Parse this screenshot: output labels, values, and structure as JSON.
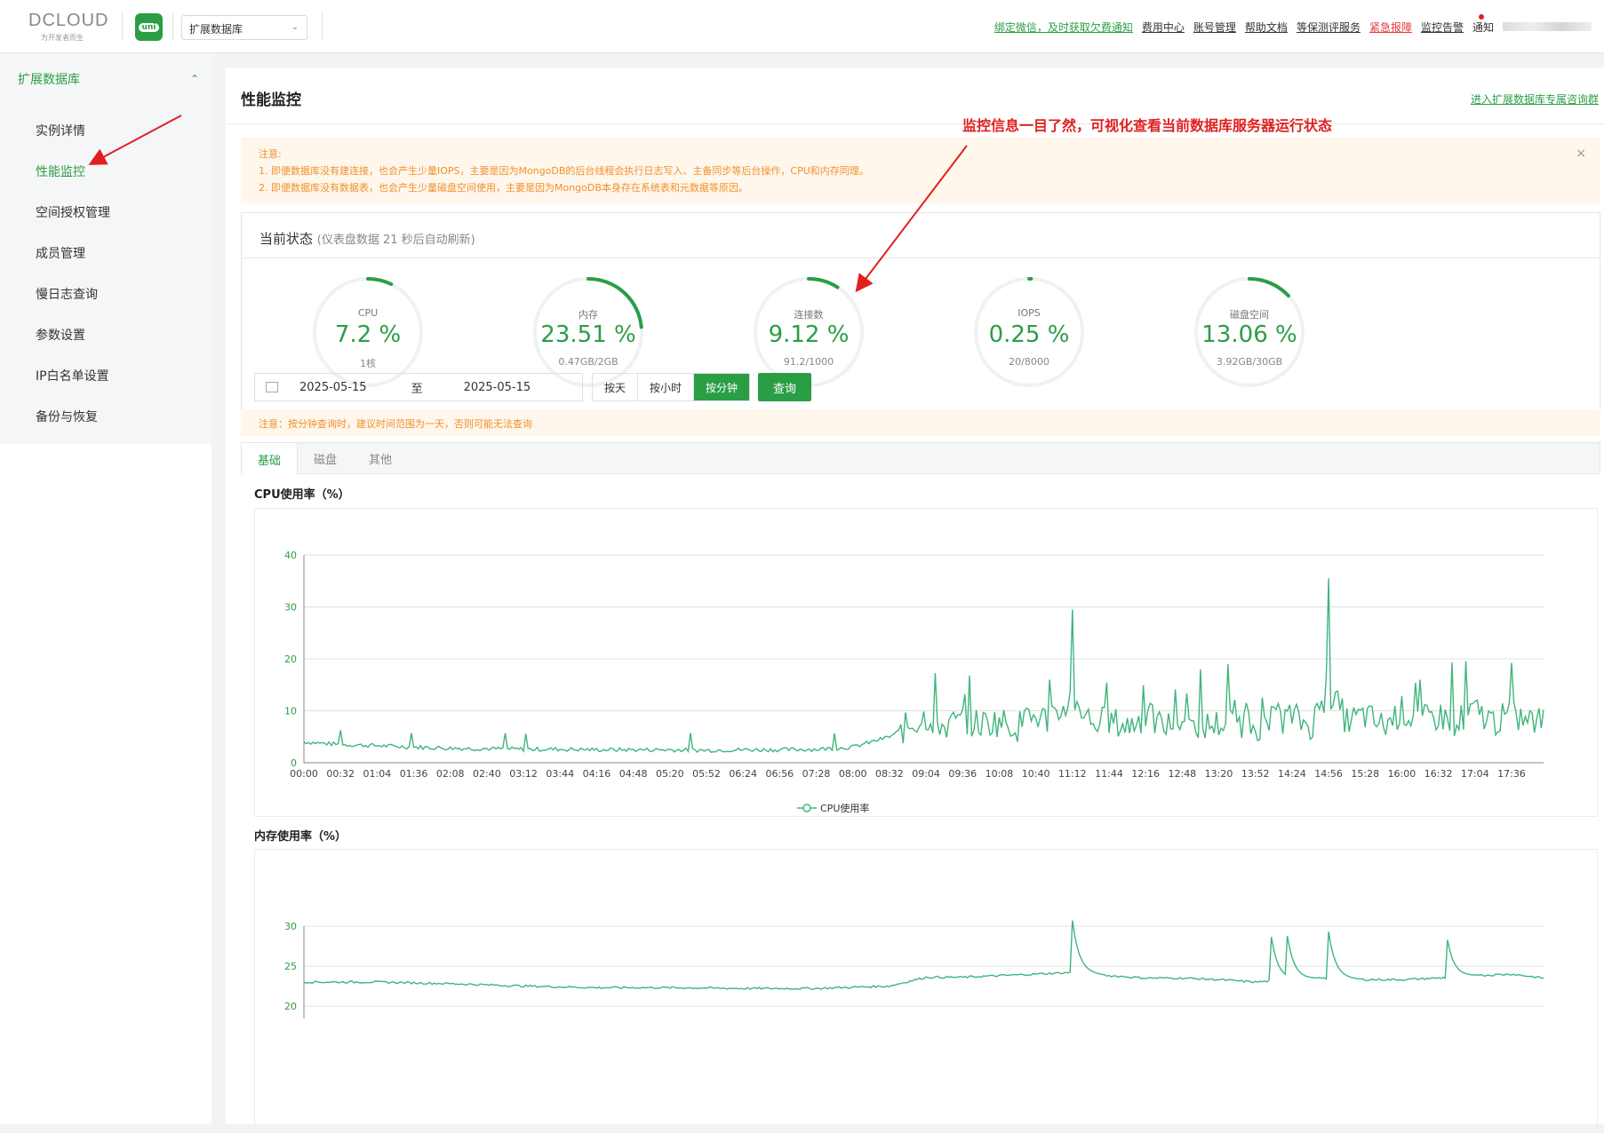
{
  "header": {
    "logo_text": "DCLOUD",
    "logo_tagline": "为开发者而生",
    "uni_badge": "uni",
    "db_select": "扩展数据库",
    "links": [
      {
        "label": "绑定微信，及时获取欠费通知",
        "style": "green"
      },
      {
        "label": "费用中心",
        "style": "normal"
      },
      {
        "label": "账号管理",
        "style": "normal"
      },
      {
        "label": "帮助文档",
        "style": "normal"
      },
      {
        "label": "等保测评服务",
        "style": "normal"
      },
      {
        "label": "紧急报障",
        "style": "red"
      },
      {
        "label": "监控告警",
        "style": "normal"
      },
      {
        "label": "通知",
        "style": "plain"
      }
    ]
  },
  "sidebar": {
    "group": "扩展数据库",
    "items": [
      {
        "label": "实例详情",
        "active": false
      },
      {
        "label": "性能监控",
        "active": true
      },
      {
        "label": "空间授权管理",
        "active": false
      },
      {
        "label": "成员管理",
        "active": false
      },
      {
        "label": "慢日志查询",
        "active": false
      },
      {
        "label": "参数设置",
        "active": false
      },
      {
        "label": "IP白名单设置",
        "active": false
      },
      {
        "label": "备份与恢复",
        "active": false
      }
    ]
  },
  "main": {
    "title": "性能监控",
    "join_link": "进入扩展数据库专属咨询群",
    "annotation": "监控信息一目了然，可视化查看当前数据库服务器运行状态",
    "notice": {
      "title": "注意:",
      "line1": "1. 即便数据库没有建连接，也会产生少量IOPS，主要是因为MongoDB的后台线程会执行日志写入、主备同步等后台操作，CPU和内存同理。",
      "line2": "2. 即便数据库没有数据表，也会产生少量磁盘空间使用，主要是因为MongoDB本身存在系统表和元数据等原因。"
    },
    "status": {
      "title": "当前状态",
      "subtitle": "(仪表盘数据 21 秒后自动刷新)",
      "gauges": [
        {
          "name": "CPU",
          "value": "7.2 %",
          "sub": "1核",
          "percent": 7.2
        },
        {
          "name": "内存",
          "value": "23.51 %",
          "sub": "0.47GB/2GB",
          "percent": 23.51
        },
        {
          "name": "连接数",
          "value": "9.12 %",
          "sub": "91.2/1000",
          "percent": 9.12
        },
        {
          "name": "IOPS",
          "value": "0.25 %",
          "sub": "20/8000",
          "percent": 0.25
        },
        {
          "name": "磁盘空间",
          "value": "13.06 %",
          "sub": "3.92GB/30GB",
          "percent": 13.06
        }
      ]
    },
    "query": {
      "start": "2025-05-15",
      "sep": "至",
      "end": "2025-05-15",
      "granularity": [
        "按天",
        "按小时",
        "按分钟"
      ],
      "selected": "按分钟",
      "button": "查询"
    },
    "notice2": "注意：按分钟查询时，建议时间范围为一天，否则可能无法查询",
    "tabs": [
      {
        "label": "基础",
        "active": true
      },
      {
        "label": "磁盘",
        "active": false
      },
      {
        "label": "其他",
        "active": false
      }
    ],
    "chart_titles": {
      "cpu": "CPU使用率（%）",
      "mem": "内存使用率（%）"
    }
  },
  "colors": {
    "brand_green": "#2a9e45",
    "line_green": "#3fb57b",
    "warn_orange": "#f0912d",
    "annotation_red": "#e02020"
  },
  "chart_data": [
    {
      "type": "line",
      "title": "CPU使用率（%）",
      "ylim": [
        0,
        40
      ],
      "yticks": [
        0,
        10,
        20,
        30,
        40
      ],
      "x_ticks": [
        "00:00",
        "00:32",
        "01:04",
        "01:36",
        "02:08",
        "02:40",
        "03:12",
        "03:44",
        "04:16",
        "04:48",
        "05:20",
        "05:52",
        "06:24",
        "06:56",
        "07:28",
        "08:00",
        "08:32",
        "09:04",
        "09:36",
        "10:08",
        "10:40",
        "11:12",
        "11:44",
        "12:16",
        "12:48",
        "13:20",
        "13:52",
        "14:24",
        "14:56",
        "15:28",
        "16:00",
        "16:32",
        "17:04",
        "17:36"
      ],
      "series": [
        {
          "name": "CPU使用率",
          "x": [
            "00:00",
            "00:32",
            "01:04",
            "01:36",
            "02:08",
            "02:40",
            "03:12",
            "03:44",
            "04:16",
            "04:48",
            "05:20",
            "05:52",
            "06:24",
            "06:56",
            "07:28",
            "08:00",
            "08:32",
            "08:48",
            "09:04",
            "09:20",
            "09:36",
            "09:52",
            "10:08",
            "10:24",
            "10:40",
            "10:56",
            "11:12",
            "11:28",
            "11:44",
            "12:00",
            "12:16",
            "12:32",
            "12:48",
            "13:04",
            "13:20",
            "13:36",
            "13:52",
            "14:08",
            "14:24",
            "14:40",
            "14:56",
            "15:12",
            "15:28",
            "15:44",
            "16:00",
            "16:16",
            "16:32",
            "16:48",
            "17:04",
            "17:20",
            "17:36",
            "17:52",
            "18:04"
          ],
          "values": [
            4,
            3.5,
            3.3,
            3,
            2.8,
            2.7,
            2.6,
            2.6,
            2.5,
            2.5,
            2.5,
            2.4,
            2.5,
            2.5,
            2.6,
            3,
            5,
            7,
            9,
            7,
            8,
            7.5,
            8,
            7,
            9,
            8,
            13,
            8,
            8,
            7,
            9,
            7,
            8,
            7,
            7.5,
            8,
            7,
            8,
            9,
            7,
            14,
            8,
            9,
            7,
            10,
            8,
            9,
            8,
            10,
            8,
            9,
            8,
            8
          ]
        }
      ],
      "peaks": [
        {
          "x": "11:12",
          "y": 29.5
        },
        {
          "x": "14:56",
          "y": 35.5
        }
      ]
    },
    {
      "type": "line",
      "title": "内存使用率（%）",
      "yticks_visible": [
        20,
        25,
        30
      ],
      "series": [
        {
          "name": "内存使用率",
          "x": [
            "00:00",
            "01:04",
            "02:08",
            "03:12",
            "04:16",
            "05:20",
            "06:24",
            "07:28",
            "08:32",
            "09:04",
            "09:36",
            "10:08",
            "10:40",
            "11:12",
            "11:44",
            "12:16",
            "12:48",
            "13:20",
            "13:52",
            "14:24",
            "14:56",
            "15:28",
            "16:00",
            "16:32",
            "17:04",
            "17:36",
            "18:04"
          ],
          "values": [
            23,
            23,
            22.8,
            22.5,
            22.3,
            22.3,
            22.2,
            22.2,
            22.5,
            23.6,
            23.6,
            23.8,
            24,
            24.2,
            23.8,
            23.5,
            23.5,
            23.3,
            23,
            23.3,
            23.5,
            23.3,
            23.3,
            23.5,
            23.8,
            24,
            23.5
          ]
        }
      ],
      "peaks": [
        {
          "x": "11:12",
          "y": 29.5
        },
        {
          "x": "14:06",
          "y": 28.5
        },
        {
          "x": "14:20",
          "y": 28.5
        },
        {
          "x": "14:56",
          "y": 28.8
        },
        {
          "x": "16:40",
          "y": 27.7
        }
      ]
    }
  ]
}
